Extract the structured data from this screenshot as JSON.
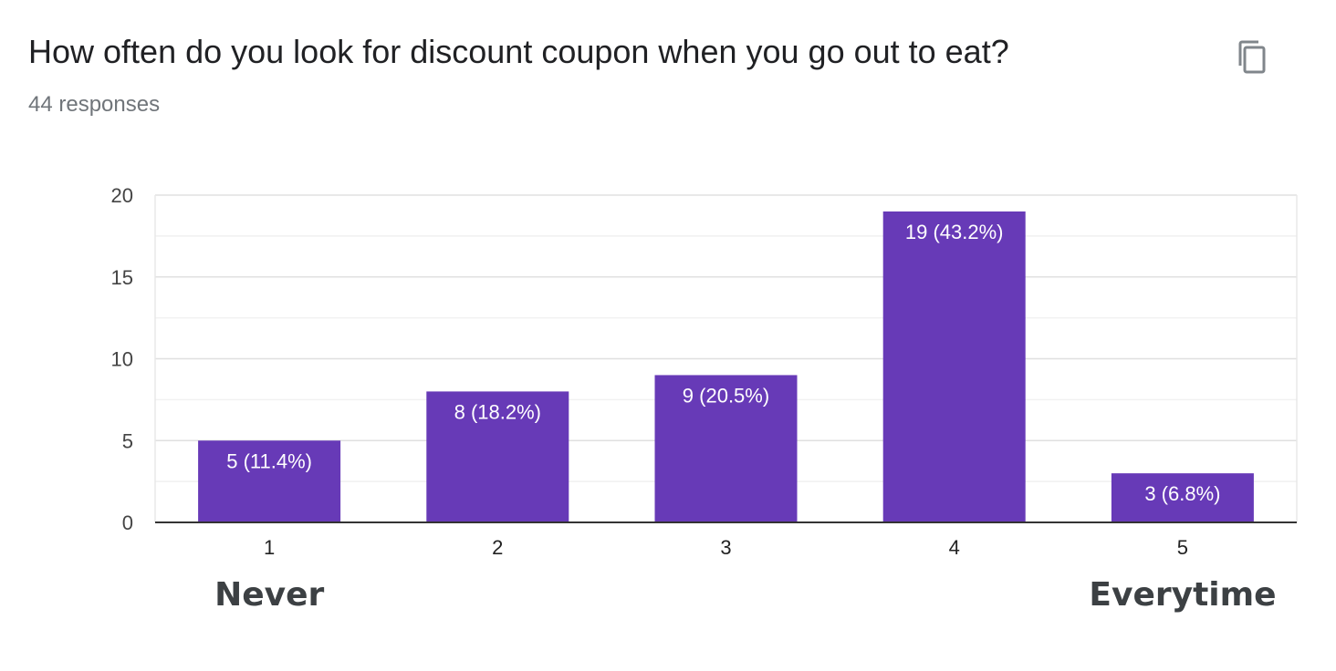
{
  "header": {
    "title": "How often do you look for discount coupon when you go out to eat?",
    "responses": "44 responses"
  },
  "scale_labels": {
    "low": "Never",
    "high": "Everytime"
  },
  "icons": {
    "copy": "copy-icon"
  },
  "colors": {
    "bar": "#673ab7",
    "grid": "#e8e8e8",
    "axis": "#333333"
  },
  "chart_data": {
    "type": "bar",
    "categories": [
      "1",
      "2",
      "3",
      "4",
      "5"
    ],
    "values": [
      5,
      8,
      9,
      19,
      3
    ],
    "data_labels": [
      "5 (11.4%)",
      "8 (18.2%)",
      "9 (20.5%)",
      "19 (43.2%)",
      "3 (6.8%)"
    ],
    "y_ticks": [
      0,
      5,
      10,
      15,
      20
    ],
    "ylim": [
      0,
      20
    ],
    "title": "",
    "xlabel": "",
    "ylabel": "",
    "grid": true,
    "legend": "none"
  }
}
